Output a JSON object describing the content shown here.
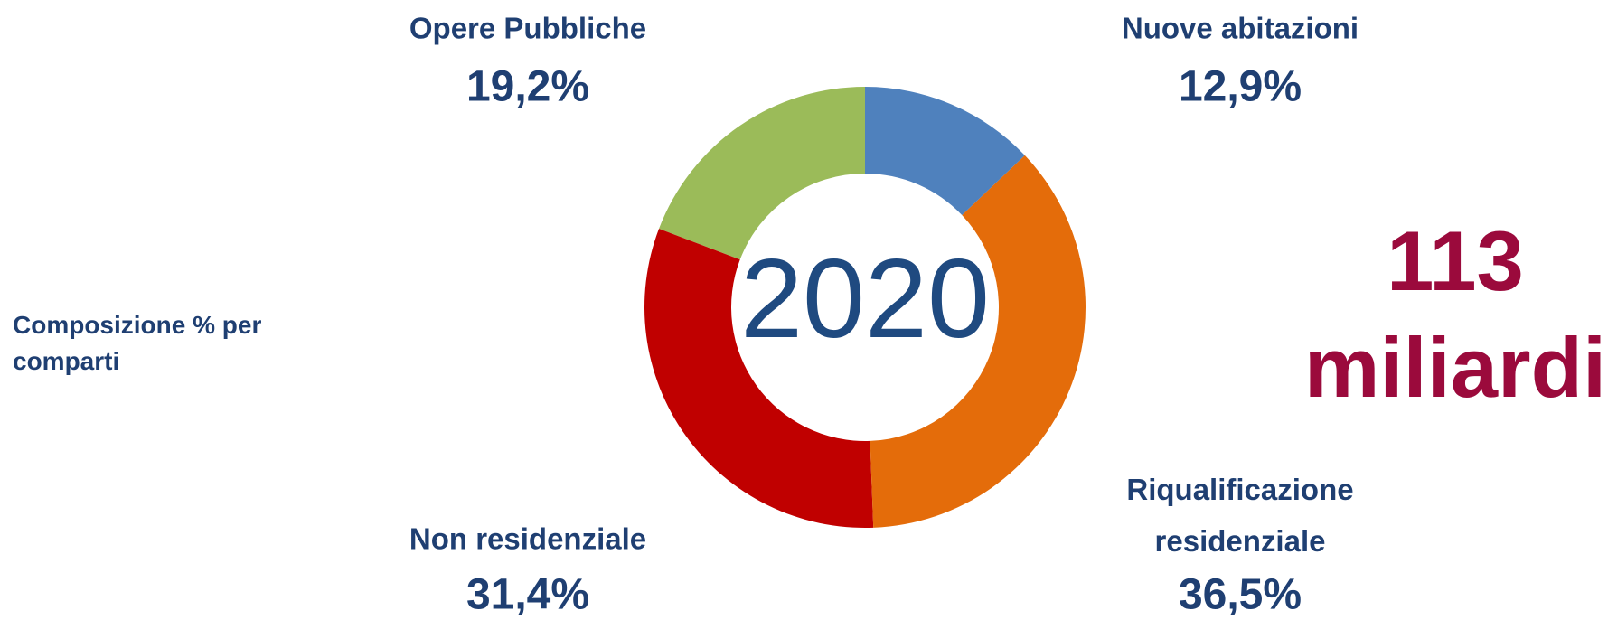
{
  "chart_data": {
    "type": "donut",
    "title": "2020",
    "categories": [
      "Nuove abitazioni",
      "Riqualificazione residenziale",
      "Non residenziale",
      "Opere Pubbliche"
    ],
    "values": [
      12.9,
      36.5,
      31.4,
      19.2
    ],
    "value_labels": [
      "12,9%",
      "36,5%",
      "31,4%",
      "19,2%"
    ],
    "colors": [
      "#4f81bd",
      "#e46c0a",
      "#c00000",
      "#9bbb59"
    ],
    "subtitle": "Composizione % per comparti",
    "annotation": "113 miliardi"
  }
}
